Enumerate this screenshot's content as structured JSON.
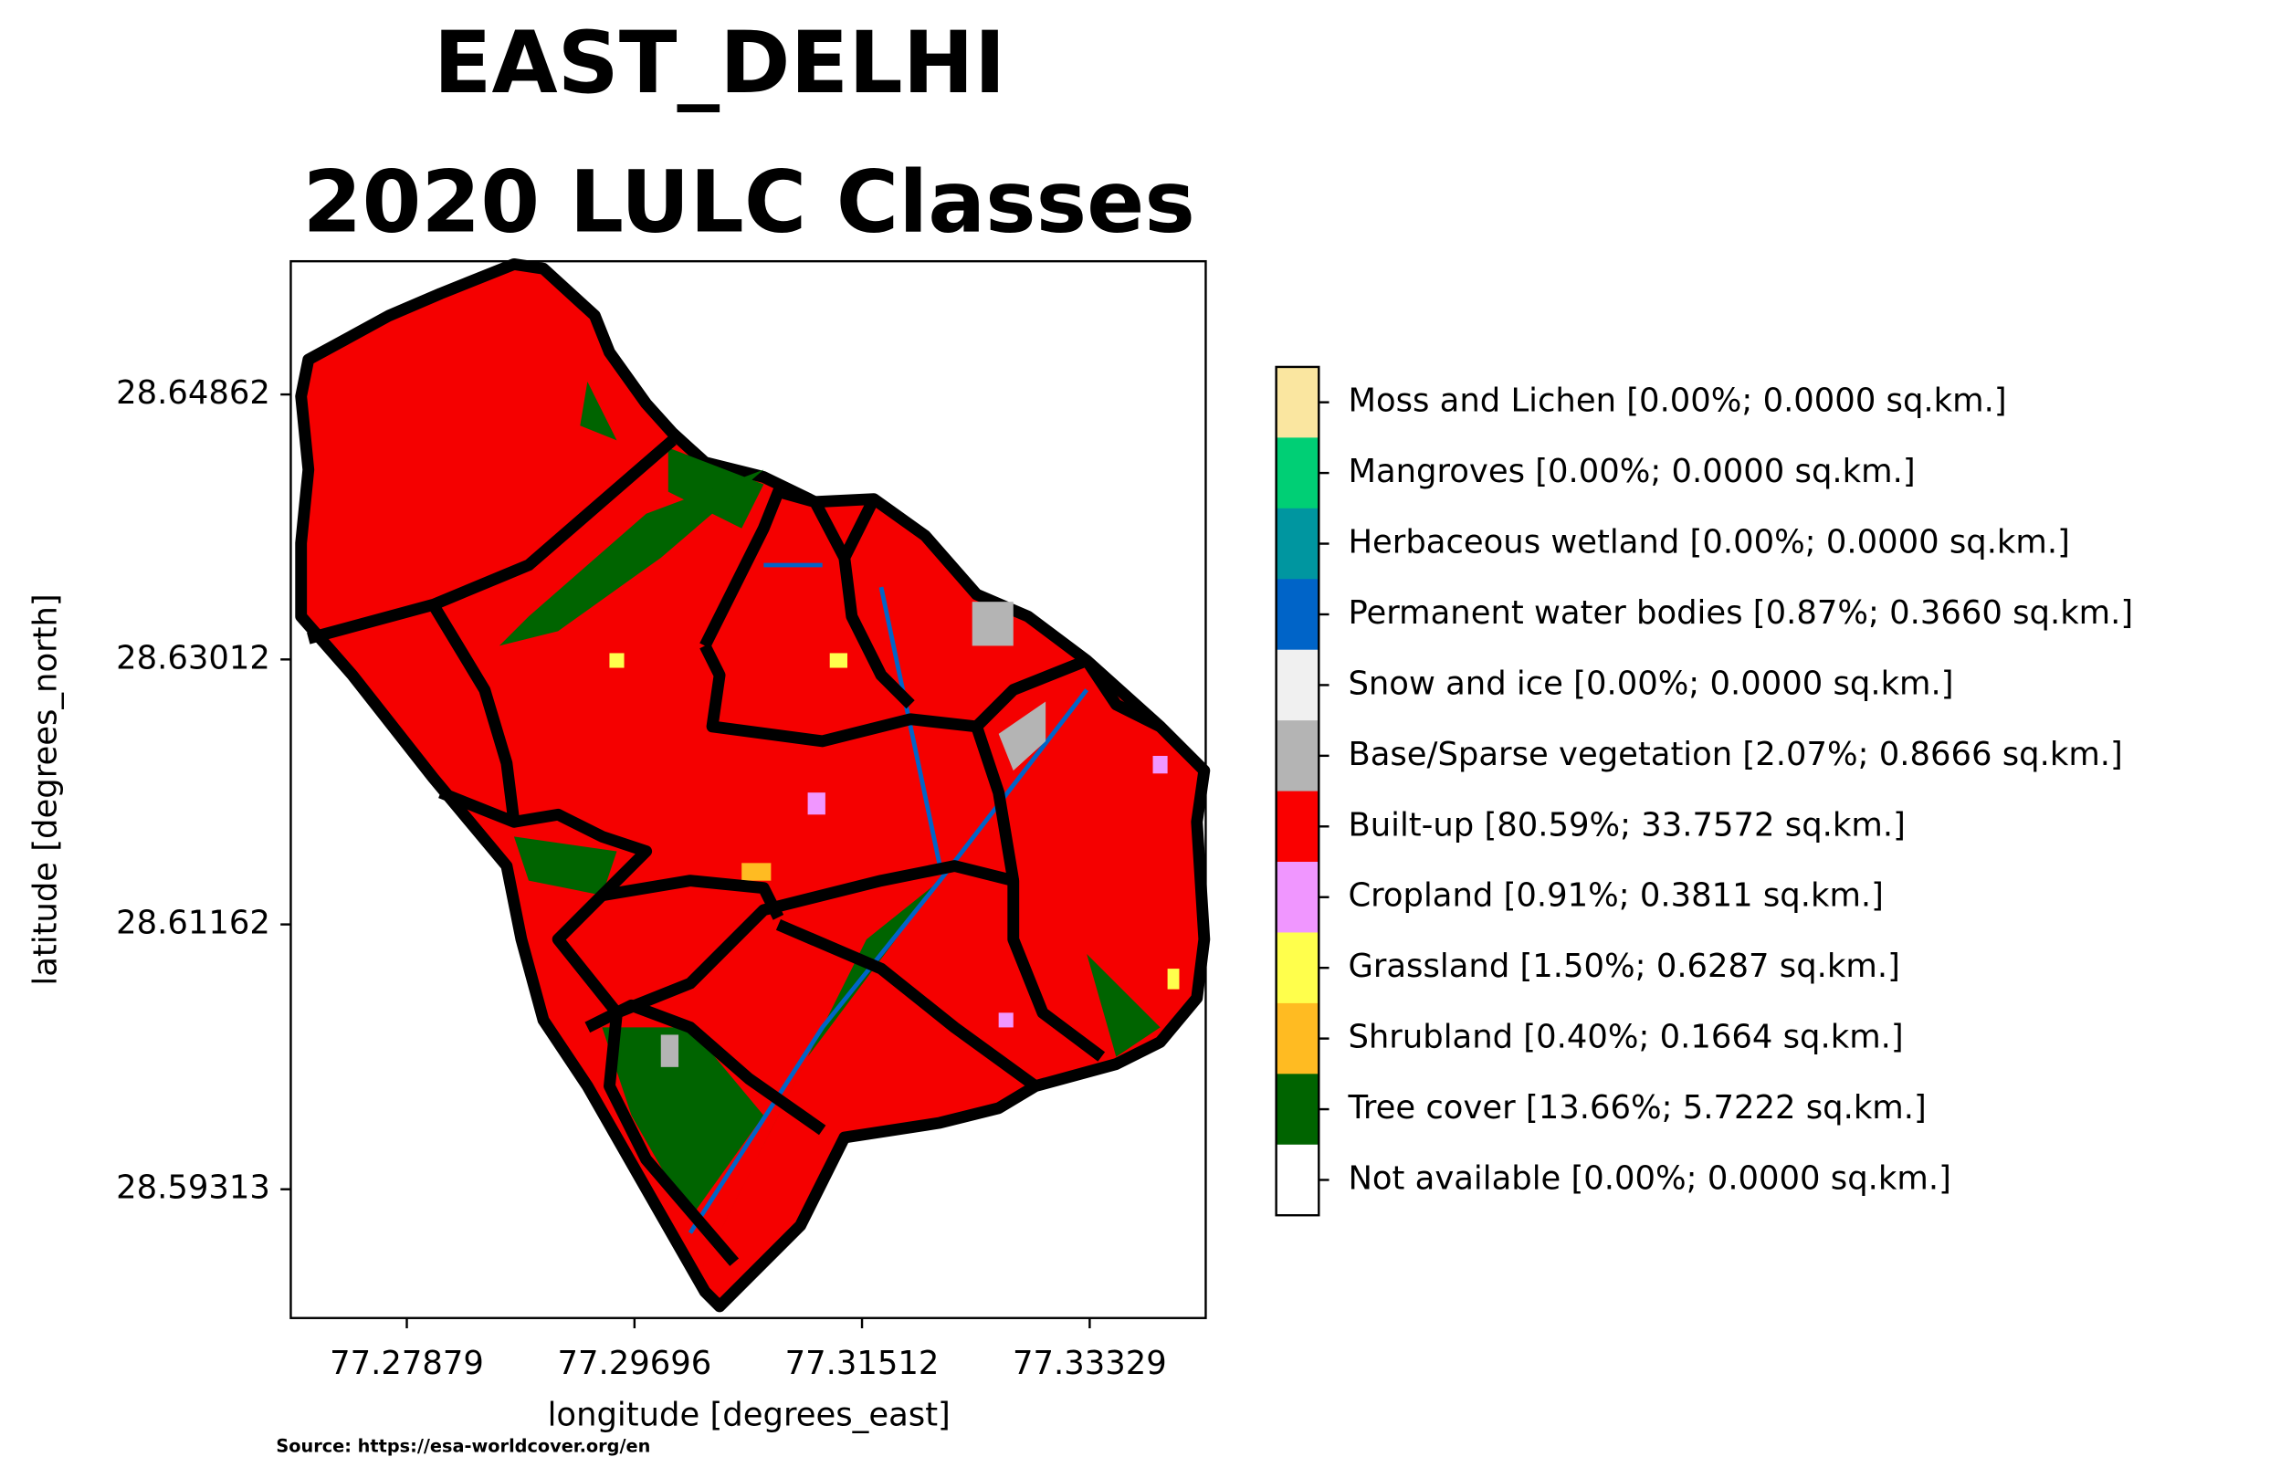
{
  "chart_data": {
    "type": "map",
    "title": [
      "EAST_DELHI",
      "2020 LULC Classes"
    ],
    "x_label": "longitude [degrees_east]",
    "y_label": "latitude [degrees_north]",
    "xlim": [
      77.26953,
      77.34255
    ],
    "ylim": [
      28.58414,
      28.65792
    ],
    "xticks": [
      77.27879,
      77.29696,
      77.31512,
      77.33329
    ],
    "yticks": [
      28.64862,
      28.63012,
      28.61162,
      28.59313
    ],
    "legend": [
      {
        "label": "Moss and Lichen [0.00%; 0.0000 sq.km.]",
        "color": "#fae6a0"
      },
      {
        "label": "Mangroves [0.00%; 0.0000 sq.km.]",
        "color": "#00cf75"
      },
      {
        "label": "Herbaceous wetland [0.00%; 0.0000 sq.km.]",
        "color": "#0096a0"
      },
      {
        "label": "Permanent water bodies [0.87%; 0.3660 sq.km.]",
        "color": "#0064c8"
      },
      {
        "label": "Snow and ice [0.00%; 0.0000 sq.km.]",
        "color": "#f0f0f0"
      },
      {
        "label": "Base/Sparse vegetation [2.07%; 0.8666 sq.km.]",
        "color": "#b4b4b4"
      },
      {
        "label": "Built-up [80.59%; 33.7572 sq.km.]",
        "color": "#fa0000"
      },
      {
        "label": "Cropland [0.91%; 0.3811 sq.km.]",
        "color": "#f096ff"
      },
      {
        "label": "Grassland [1.50%; 0.6287 sq.km.]",
        "color": "#ffff4c"
      },
      {
        "label": "Shrubland [0.40%; 0.1664 sq.km.]",
        "color": "#ffbb22"
      },
      {
        "label": "Tree cover [13.66%; 5.7222 sq.km.]",
        "color": "#006400"
      },
      {
        "label": "Not available [0.00%; 0.0000 sq.km.]",
        "color": "#ffffff"
      }
    ],
    "source": "Source: https://esa-worldcover.org/en"
  }
}
